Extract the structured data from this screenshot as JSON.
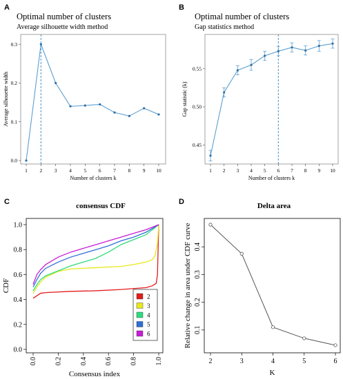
{
  "colors": {
    "blue_line": "#5b9fd1",
    "point": "#2f6fa4",
    "ref_line": "#4a8fc4",
    "gray_line": "#555555",
    "cdf_2": "#e41a1c",
    "cdf_3": "#e8e81c",
    "cdf_4": "#2edc7c",
    "cdf_5": "#2f6ed8",
    "cdf_6": "#c81cd6"
  },
  "chart_data": [
    {
      "panel": "A",
      "type": "line",
      "title": "Optimal number of clusters",
      "subtitle": "Average silhouette width method",
      "xlabel": "Number of clusters k",
      "ylabel": "Average silhouette width",
      "x": [
        1,
        2,
        3,
        4,
        5,
        6,
        7,
        8,
        9,
        10
      ],
      "xticks": [
        "1",
        "2",
        "3",
        "4",
        "5",
        "6",
        "7",
        "8",
        "9",
        "10"
      ],
      "yticks": [
        "0.0",
        "0.1",
        "0.2",
        "0.3"
      ],
      "ylim": [
        0,
        0.32
      ],
      "values": [
        0.0,
        0.3,
        0.2,
        0.14,
        0.142,
        0.145,
        0.124,
        0.115,
        0.135,
        0.119
      ],
      "reference_x": 2
    },
    {
      "panel": "B",
      "type": "line",
      "title": "Optimal number of clusters",
      "subtitle": "Gap statistics method",
      "xlabel": "Number of clusters k",
      "ylabel": "Gap statistic (k)",
      "x": [
        1,
        2,
        3,
        4,
        5,
        6,
        7,
        8,
        9,
        10
      ],
      "xticks": [
        "1",
        "2",
        "3",
        "4",
        "5",
        "6",
        "7",
        "8",
        "9",
        "10"
      ],
      "yticks": [
        "0.45",
        "0.50",
        "0.55"
      ],
      "ylim": [
        0.425,
        0.595
      ],
      "values": [
        0.436,
        0.519,
        0.548,
        0.555,
        0.567,
        0.573,
        0.578,
        0.574,
        0.58,
        0.583
      ],
      "errors": [
        0.007,
        0.006,
        0.006,
        0.007,
        0.006,
        0.006,
        0.006,
        0.006,
        0.007,
        0.006
      ],
      "reference_x": 6
    },
    {
      "panel": "C",
      "type": "line",
      "title": "consensus CDF",
      "xlabel": "Consensus index",
      "ylabel": "CDF",
      "xticks": [
        "0.0",
        "0.2",
        "0.4",
        "0.6",
        "0.8",
        "1.0"
      ],
      "yticks": [
        "0.0",
        "0.2",
        "0.4",
        "0.6",
        "0.8",
        "1.0"
      ],
      "xlim": [
        0,
        1
      ],
      "ylim": [
        0,
        1
      ],
      "legend": [
        "2",
        "3",
        "4",
        "5",
        "6"
      ],
      "legend_position": "bottom-right",
      "series": [
        {
          "name": "2",
          "x": [
            0,
            0.03,
            0.06,
            0.1,
            0.3,
            0.5,
            0.7,
            0.9,
            0.95,
            0.98,
            0.99,
            1.0
          ],
          "y": [
            0.41,
            0.43,
            0.45,
            0.455,
            0.465,
            0.47,
            0.48,
            0.495,
            0.51,
            0.53,
            0.6,
            1.0
          ]
        },
        {
          "name": "3",
          "x": [
            0,
            0.03,
            0.06,
            0.1,
            0.2,
            0.3,
            0.5,
            0.7,
            0.8,
            0.9,
            0.95,
            0.97,
            0.99,
            1.0
          ],
          "y": [
            0.45,
            0.5,
            0.54,
            0.58,
            0.625,
            0.645,
            0.655,
            0.665,
            0.68,
            0.7,
            0.72,
            0.75,
            0.85,
            1.0
          ]
        },
        {
          "name": "4",
          "x": [
            0,
            0.03,
            0.06,
            0.1,
            0.2,
            0.3,
            0.4,
            0.5,
            0.6,
            0.7,
            0.8,
            0.9,
            1.0
          ],
          "y": [
            0.47,
            0.52,
            0.56,
            0.59,
            0.63,
            0.67,
            0.7,
            0.73,
            0.78,
            0.84,
            0.88,
            0.92,
            1.0
          ]
        },
        {
          "name": "5",
          "x": [
            0,
            0.03,
            0.06,
            0.1,
            0.2,
            0.3,
            0.4,
            0.5,
            0.6,
            0.7,
            0.8,
            0.9,
            1.0
          ],
          "y": [
            0.5,
            0.56,
            0.61,
            0.65,
            0.7,
            0.74,
            0.77,
            0.8,
            0.83,
            0.87,
            0.9,
            0.94,
            1.0
          ]
        },
        {
          "name": "6",
          "x": [
            0,
            0.03,
            0.06,
            0.1,
            0.2,
            0.3,
            0.4,
            0.5,
            0.6,
            0.7,
            0.8,
            0.9,
            1.0
          ],
          "y": [
            0.52,
            0.6,
            0.64,
            0.68,
            0.74,
            0.78,
            0.81,
            0.84,
            0.87,
            0.9,
            0.93,
            0.96,
            1.0
          ]
        }
      ]
    },
    {
      "panel": "D",
      "type": "line",
      "title": "Delta area",
      "xlabel": "K",
      "ylabel": "Relative change in area under CDF curve",
      "x": [
        2,
        3,
        4,
        5,
        6
      ],
      "xticks": [
        "2",
        "3",
        "4",
        "5",
        "6"
      ],
      "yticks": [
        "0.1",
        "0.2",
        "0.3",
        "0.4"
      ],
      "ylim": [
        0.03,
        0.49
      ],
      "values": [
        0.48,
        0.375,
        0.11,
        0.07,
        0.045
      ]
    }
  ]
}
